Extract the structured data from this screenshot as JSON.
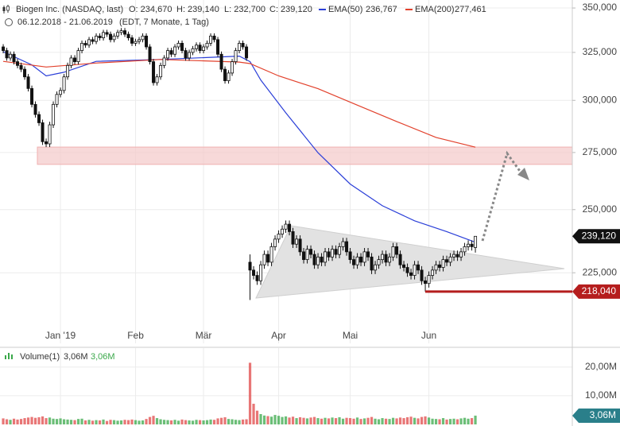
{
  "chart_data": [
    {
      "type": "candlestick",
      "title": "Biogen Inc. (NASDAQ, last)",
      "subtitle": "06.12.2018 - 21.06.2019",
      "period_note": "(EDT, 7 Monate, 1 Tag)",
      "info": [
        "O: 234,670",
        "H: 239,140",
        "L: 232,700",
        "C: 239,120"
      ],
      "log_scale": true,
      "grid": true,
      "up_color": "#ffffff",
      "down_color": "#111111",
      "xlim": [
        -0.9,
        159.1
      ],
      "xticks": [
        {
          "value": 16,
          "label": "Jan '19"
        },
        {
          "value": 37,
          "label": "Feb"
        },
        {
          "value": 56,
          "label": "Mär"
        },
        {
          "value": 77,
          "label": "Apr"
        },
        {
          "value": 97,
          "label": "Mai"
        },
        {
          "value": 119,
          "label": "Jun"
        }
      ],
      "ylim": [
        200000,
        354700
      ],
      "yticks": [
        {
          "value": 225000,
          "label": "225,000"
        },
        {
          "value": 250000,
          "label": "250,000"
        },
        {
          "value": 275000,
          "label": "275,000"
        },
        {
          "value": 300000,
          "label": "300,000"
        },
        {
          "value": 325000,
          "label": "325,000"
        },
        {
          "value": 350000,
          "label": "350,000"
        }
      ],
      "open": [
        328000,
        326000,
        322000,
        324000,
        320000,
        318000,
        316000,
        312000,
        306000,
        298000,
        293000,
        289000,
        280000,
        279000,
        288000,
        298000,
        303000,
        305000,
        312000,
        318000,
        322000,
        320000,
        326000,
        330000,
        329000,
        332000,
        331000,
        334000,
        333000,
        336000,
        335000,
        332000,
        334000,
        336000,
        337000,
        335000,
        333000,
        330000,
        331000,
        332000,
        334000,
        328000,
        320000,
        309000,
        312000,
        318000,
        322000,
        326000,
        324000,
        328000,
        330000,
        326000,
        322000,
        325000,
        327000,
        329000,
        326000,
        328000,
        330000,
        334000,
        332000,
        324000,
        316000,
        310000,
        314000,
        320000,
        326000,
        330000,
        328000,
        229000,
        226000,
        224000,
        222000,
        228000,
        232000,
        229000,
        235000,
        238000,
        240000,
        242000,
        244000,
        241000,
        236000,
        238000,
        233000,
        230000,
        234000,
        232000,
        228000,
        231000,
        229000,
        233000,
        231000,
        234000,
        232000,
        235000,
        237000,
        233000,
        230000,
        228000,
        231000,
        229000,
        233000,
        231000,
        226000,
        228000,
        230000,
        232000,
        229000,
        231000,
        235000,
        232000,
        228000,
        227000,
        225000,
        224000,
        228000,
        226000,
        222000,
        221000,
        224000,
        226000,
        228000,
        227000,
        230000,
        229000,
        231000,
        232000,
        231000,
        233000,
        235000,
        236000,
        234670
      ],
      "high": [
        329500,
        327500,
        325500,
        325500,
        321500,
        319500,
        317500,
        313500,
        307500,
        299500,
        294500,
        290500,
        281500,
        289500,
        299500,
        304500,
        306500,
        313500,
        319500,
        323500,
        323500,
        327500,
        331500,
        331500,
        333500,
        333500,
        335500,
        335500,
        337500,
        337500,
        336500,
        335500,
        337500,
        338500,
        338500,
        336500,
        334500,
        332500,
        333500,
        335500,
        335500,
        329500,
        321500,
        313500,
        319500,
        323500,
        327500,
        327500,
        329500,
        331500,
        331500,
        327500,
        326500,
        328500,
        330500,
        330500,
        329500,
        331500,
        335500,
        335500,
        333500,
        325500,
        317500,
        315500,
        321500,
        327500,
        331500,
        331500,
        329500,
        232000,
        227500,
        225500,
        229500,
        233500,
        233500,
        236500,
        239500,
        241500,
        243500,
        245500,
        245500,
        242500,
        239500,
        239500,
        234500,
        235500,
        235500,
        233500,
        232500,
        232500,
        234500,
        234500,
        235500,
        235500,
        236500,
        238500,
        238500,
        234500,
        231500,
        232500,
        232500,
        234500,
        234500,
        232500,
        229500,
        231500,
        233500,
        233500,
        232500,
        236500,
        236500,
        233500,
        229500,
        228500,
        226500,
        229500,
        229500,
        227500,
        223500,
        225500,
        227500,
        229500,
        229500,
        231500,
        231500,
        232500,
        233500,
        233500,
        234500,
        236500,
        237500,
        237500,
        239140
      ],
      "low": [
        324500,
        320500,
        320500,
        318500,
        316500,
        314500,
        310500,
        304500,
        296500,
        291500,
        287500,
        278500,
        277500,
        277500,
        286500,
        296500,
        301500,
        303500,
        310500,
        316500,
        318500,
        318500,
        324500,
        327500,
        327500,
        329500,
        329500,
        331500,
        331500,
        333500,
        330500,
        330500,
        332500,
        334500,
        333500,
        331500,
        328500,
        328500,
        329500,
        330500,
        326500,
        318500,
        307500,
        307500,
        310500,
        316500,
        320500,
        322500,
        322500,
        326500,
        324500,
        320500,
        320500,
        323500,
        325500,
        324500,
        324500,
        326500,
        328500,
        330500,
        322500,
        314500,
        308500,
        308500,
        312500,
        318500,
        324500,
        326500,
        320500,
        215000,
        222500,
        220500,
        220500,
        226500,
        227500,
        227500,
        233500,
        236500,
        238500,
        240500,
        239500,
        234500,
        234500,
        231500,
        228500,
        228500,
        230500,
        226500,
        226500,
        227500,
        227500,
        229500,
        229500,
        230500,
        230500,
        233500,
        231500,
        228500,
        226500,
        226500,
        227500,
        227500,
        229500,
        224500,
        224500,
        226500,
        228500,
        227500,
        227500,
        229500,
        230500,
        226500,
        225500,
        223500,
        222500,
        222500,
        224500,
        220500,
        218040,
        219500,
        222500,
        224500,
        225500,
        225500,
        227500,
        227500,
        229500,
        229500,
        229500,
        231500,
        233500,
        233500,
        232700
      ],
      "close": [
        326000,
        322000,
        324000,
        320000,
        318000,
        316000,
        312000,
        306000,
        298000,
        293000,
        289000,
        280000,
        279000,
        288000,
        298000,
        303000,
        305000,
        312000,
        318000,
        322000,
        320000,
        326000,
        330000,
        329000,
        332000,
        331000,
        334000,
        333000,
        336000,
        335000,
        332000,
        334000,
        336000,
        337000,
        335000,
        333000,
        330000,
        331000,
        332000,
        334000,
        328000,
        320000,
        309000,
        312000,
        318000,
        322000,
        326000,
        324000,
        328000,
        330000,
        326000,
        322000,
        325000,
        327000,
        329000,
        326000,
        328000,
        330000,
        334000,
        332000,
        324000,
        316000,
        310000,
        314000,
        320000,
        326000,
        330000,
        328000,
        322000,
        226000,
        224000,
        222000,
        228000,
        232000,
        229000,
        235000,
        238000,
        240000,
        242000,
        244000,
        241000,
        236000,
        238000,
        233000,
        230000,
        234000,
        232000,
        228000,
        231000,
        229000,
        233000,
        231000,
        234000,
        232000,
        235000,
        237000,
        233000,
        230000,
        228000,
        231000,
        229000,
        233000,
        231000,
        226000,
        228000,
        230000,
        232000,
        229000,
        231000,
        235000,
        232000,
        228000,
        227000,
        225000,
        224000,
        228000,
        226000,
        222000,
        221000,
        224000,
        226000,
        228000,
        227000,
        230000,
        229000,
        231000,
        232000,
        231000,
        233000,
        235000,
        236000,
        235000,
        239120
      ],
      "series": [
        {
          "name": "EMA(50)",
          "legend_value": "236,767",
          "color": "#2b3fd8",
          "x": [
            0,
            8,
            12,
            17,
            26,
            44,
            66,
            69,
            72,
            79,
            88,
            97,
            106,
            115,
            124,
            132
          ],
          "values": [
            325400,
            318300,
            312500,
            314400,
            320200,
            321200,
            323000,
            320000,
            310300,
            293800,
            274900,
            260900,
            251600,
            245400,
            241000,
            236767
          ]
        },
        {
          "name": "EMA(200)",
          "legend_value": "277,461",
          "color": "#e2412c",
          "x": [
            0,
            12,
            26,
            44,
            66,
            69,
            77,
            88,
            99,
            110,
            121,
            132
          ],
          "values": [
            320200,
            317200,
            319300,
            321200,
            319800,
            319000,
            312500,
            305900,
            297600,
            289600,
            282000,
            277461
          ]
        }
      ],
      "zone": [
        269600,
        277500
      ],
      "last_price": {
        "value": 239120,
        "label": "239,120"
      },
      "support": {
        "value": 218040,
        "label": "218,040"
      }
    },
    {
      "type": "bar",
      "title": "Volume(1)",
      "info": [
        "3,06M",
        "3,06M"
      ],
      "up_color": "#3aa84a",
      "down_color": "#e04848",
      "xlim": [
        -0.9,
        159.1
      ],
      "ylim": [
        0,
        23000000
      ],
      "yticks": [
        {
          "value": 10000000,
          "label": "10,00M"
        },
        {
          "value": 20000000,
          "label": "20,00M"
        }
      ],
      "values": [
        2100000,
        1800000,
        1600000,
        2000000,
        1700000,
        1900000,
        2200000,
        2400000,
        2600000,
        2300000,
        2500000,
        2800000,
        2200000,
        2400000,
        2000000,
        1900000,
        2100000,
        1800000,
        1700000,
        1600000,
        1500000,
        1900000,
        2000000,
        1400000,
        1600000,
        1300000,
        1500000,
        1400000,
        1700000,
        1200000,
        1600000,
        1500000,
        1300000,
        1400000,
        1600000,
        1500000,
        1700000,
        1500000,
        1300000,
        1400000,
        1900000,
        2600000,
        3000000,
        2200000,
        1800000,
        1600000,
        1500000,
        1400000,
        1600000,
        1300000,
        1700000,
        1500000,
        1400000,
        1300000,
        1600000,
        1500000,
        1400000,
        1500000,
        1700000,
        1600000,
        2100000,
        2300000,
        2500000,
        1900000,
        1800000,
        1600000,
        1500000,
        1700000,
        1800000,
        21500000,
        7200000,
        4800000,
        3600000,
        3100000,
        2900000,
        2700000,
        3300000,
        3000000,
        2600000,
        2800000,
        2400000,
        2700000,
        2200000,
        2500000,
        2300000,
        2100000,
        2400000,
        2600000,
        2200000,
        2000000,
        2300000,
        2100000,
        2400000,
        2200000,
        2500000,
        2000000,
        2300000,
        2200000,
        2000000,
        2400000,
        1900000,
        2100000,
        2300000,
        2600000,
        2000000,
        1800000,
        2200000,
        2000000,
        1900000,
        2300000,
        2100000,
        2400000,
        2200000,
        2500000,
        2700000,
        2300000,
        2100000,
        2600000,
        2800000,
        2400000,
        2000000,
        1900000,
        1800000,
        2200000,
        1700000,
        1900000,
        2000000,
        1800000,
        2100000,
        2300000,
        2000000,
        2200000,
        3060000
      ],
      "last_value": {
        "value": 3060000,
        "label": "3,06M"
      }
    }
  ]
}
